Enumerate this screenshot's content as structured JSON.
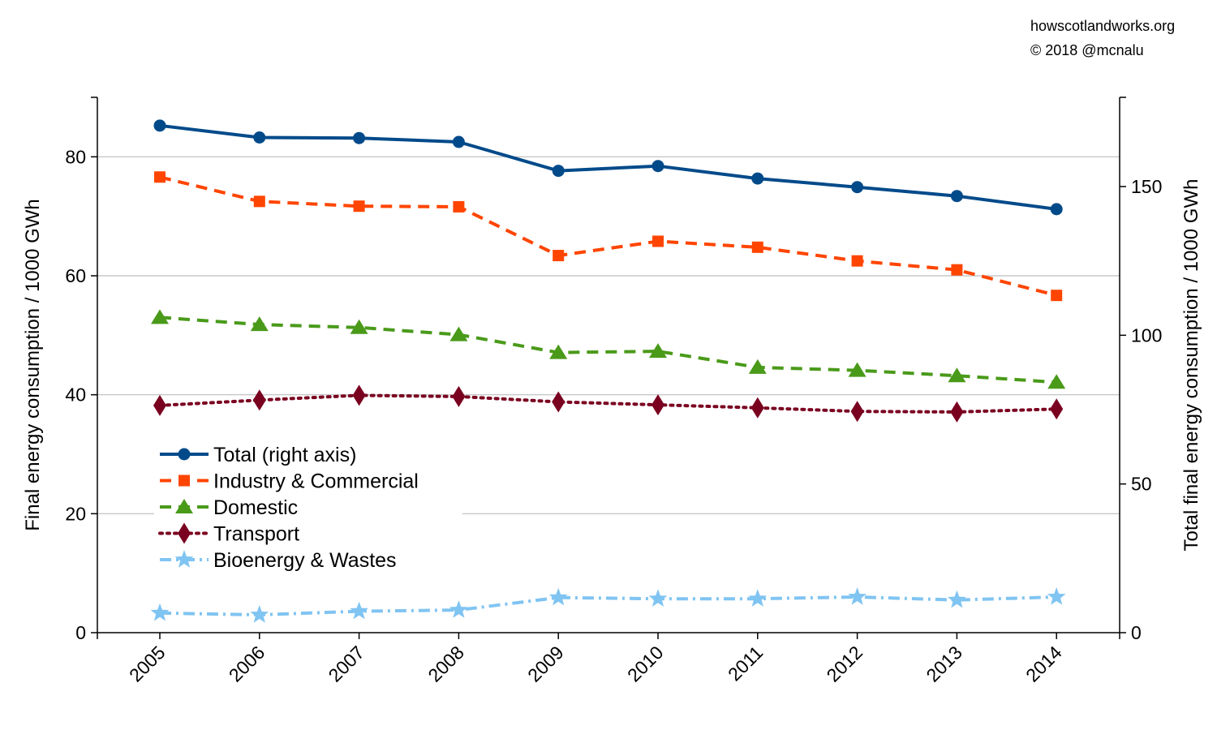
{
  "credit": {
    "line1": "howscotlandworks.org",
    "line2": "© 2018  @mcnalu"
  },
  "chart_data": {
    "type": "line",
    "title": "",
    "x": [
      "2005",
      "2006",
      "2007",
      "2008",
      "2009",
      "2010",
      "2011",
      "2012",
      "2013",
      "2014"
    ],
    "xlabel": "",
    "ylabel": "Final energy consumption / 1000 GWh",
    "ylabel_right": "Total final energy consumption / 1000 GWh",
    "ylim": [
      0,
      90
    ],
    "ylim_right": [
      0,
      180
    ],
    "yticks": [
      0,
      20,
      40,
      60,
      80
    ],
    "yticks_right": [
      0,
      50,
      100,
      150
    ],
    "grid": true,
    "legend_position": "left",
    "series": [
      {
        "name": "Total (right axis)",
        "axis": "right",
        "color": "#004a8a",
        "dash": "solid",
        "marker": "circle",
        "values": [
          170.5,
          166.5,
          166.3,
          165.0,
          155.3,
          156.9,
          152.7,
          149.8,
          146.8,
          142.4
        ]
      },
      {
        "name": "Industry & Commercial",
        "axis": "left",
        "color": "#ff4500",
        "dash": "dashed",
        "marker": "square",
        "values": [
          76.6,
          72.5,
          71.7,
          71.6,
          63.4,
          65.8,
          64.8,
          62.5,
          61.0,
          56.7
        ]
      },
      {
        "name": "Domestic",
        "axis": "left",
        "color": "#4a9a1a",
        "dash": "dashed",
        "marker": "triangle",
        "values": [
          53.0,
          51.8,
          51.3,
          50.1,
          47.1,
          47.3,
          44.6,
          44.1,
          43.2,
          42.1
        ]
      },
      {
        "name": "Transport",
        "axis": "left",
        "color": "#7a0020",
        "dash": "dotted",
        "marker": "diamond",
        "values": [
          38.2,
          39.1,
          39.9,
          39.7,
          38.8,
          38.3,
          37.8,
          37.2,
          37.1,
          37.6
        ]
      },
      {
        "name": "Bioenergy & Wastes",
        "axis": "left",
        "color": "#80c4f2",
        "dash": "dashdot",
        "marker": "star",
        "values": [
          3.3,
          3.0,
          3.6,
          3.8,
          5.9,
          5.7,
          5.7,
          6.0,
          5.5,
          6.0
        ]
      }
    ]
  }
}
